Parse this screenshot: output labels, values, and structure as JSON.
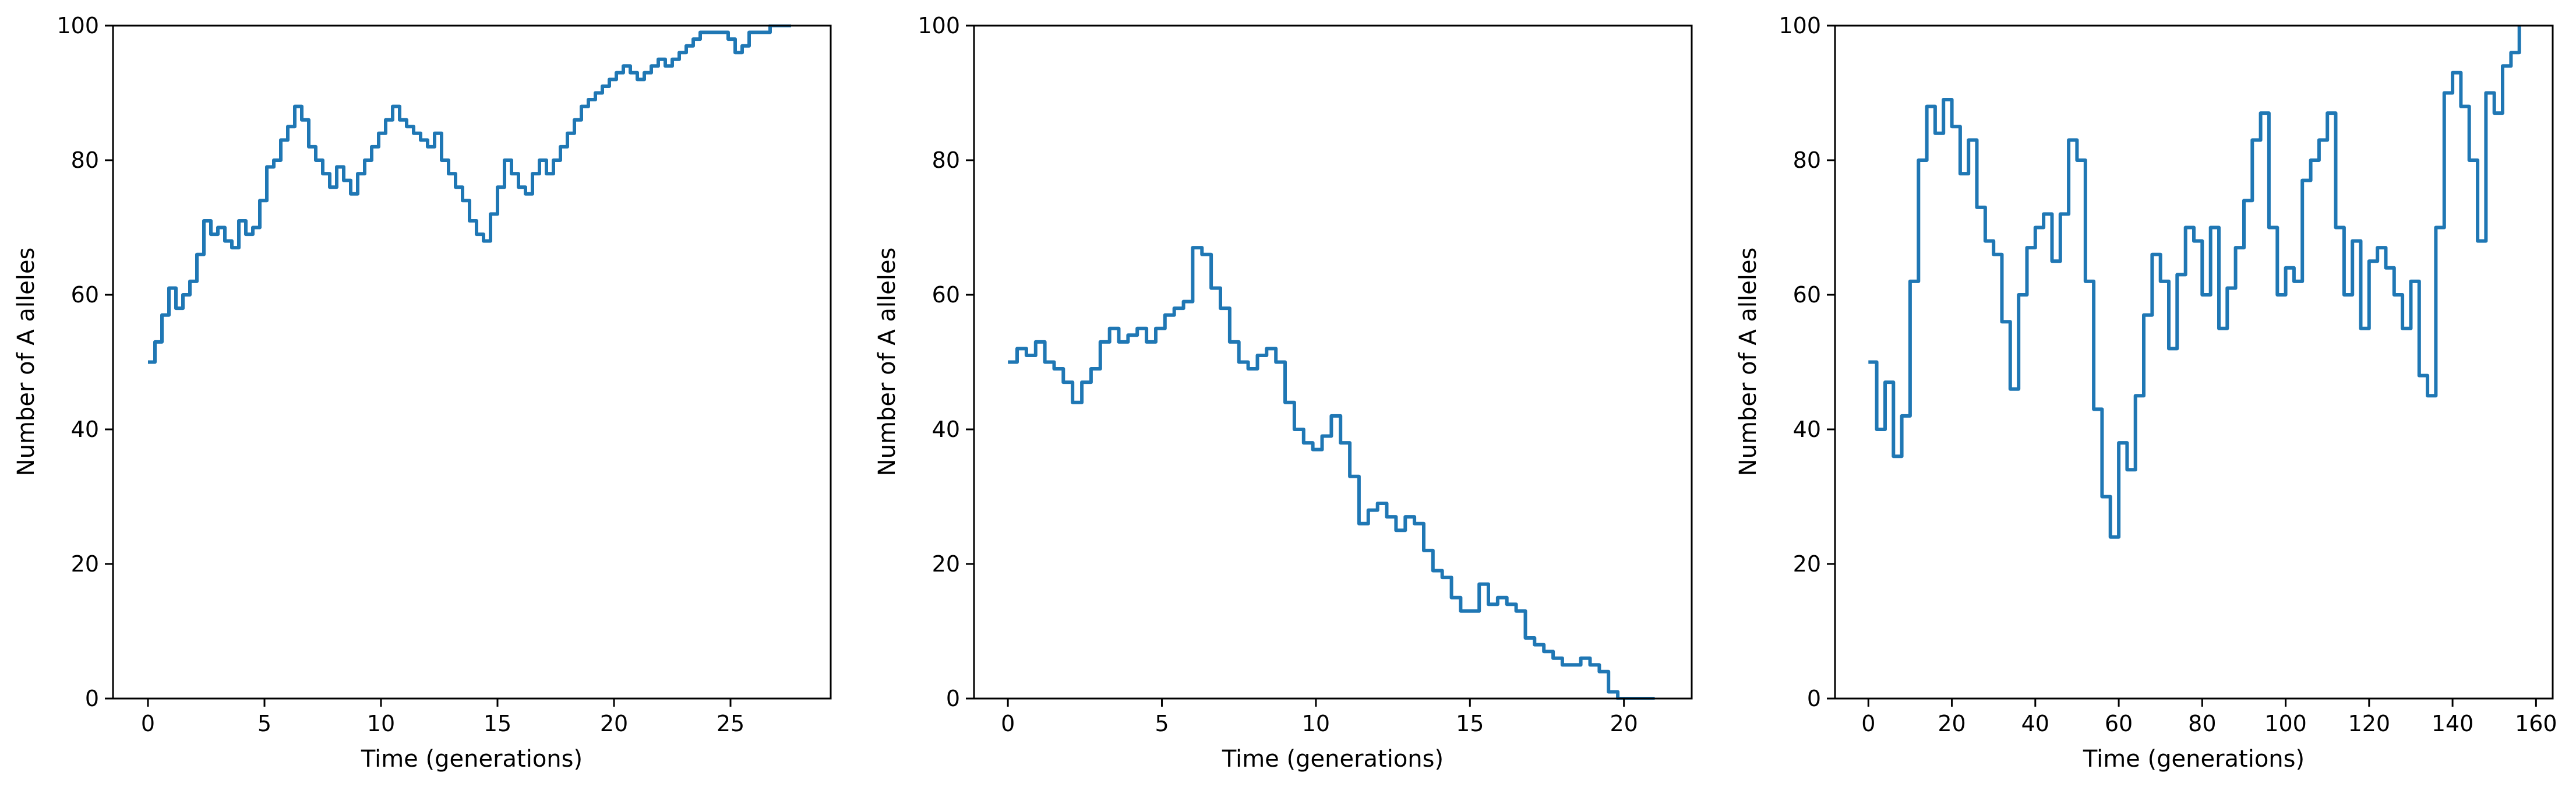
{
  "figure": {
    "background": "#ffffff",
    "line_color": "#1f77b4"
  },
  "chart_data": [
    {
      "type": "line",
      "title": "",
      "xlabel": "Time (generations)",
      "ylabel": "Number of A alleles",
      "xlim": [
        -1.5,
        29.3
      ],
      "ylim": [
        0,
        100
      ],
      "xticks": [
        0,
        5,
        10,
        15,
        20,
        25
      ],
      "yticks": [
        0,
        20,
        40,
        60,
        80,
        100
      ],
      "grid": false,
      "legend": "none",
      "series": [
        {
          "color": "#1f77b4",
          "x": [
            0,
            0.3,
            0.6,
            0.9,
            1.2,
            1.5,
            1.8,
            2.1,
            2.4,
            2.7,
            3.0,
            3.3,
            3.6,
            3.9,
            4.2,
            4.5,
            4.8,
            5.1,
            5.4,
            5.7,
            6.0,
            6.3,
            6.6,
            6.9,
            7.2,
            7.5,
            7.8,
            8.1,
            8.4,
            8.7,
            9.0,
            9.3,
            9.6,
            9.9,
            10.2,
            10.5,
            10.8,
            11.1,
            11.4,
            11.7,
            12.0,
            12.3,
            12.6,
            12.9,
            13.2,
            13.5,
            13.8,
            14.1,
            14.4,
            14.7,
            15.0,
            15.3,
            15.6,
            15.9,
            16.2,
            16.5,
            16.8,
            17.1,
            17.4,
            17.7,
            18.0,
            18.3,
            18.6,
            18.9,
            19.2,
            19.5,
            19.8,
            20.1,
            20.4,
            20.7,
            21.0,
            21.3,
            21.6,
            21.9,
            22.2,
            22.5,
            22.8,
            23.1,
            23.4,
            23.7,
            24.0,
            24.3,
            24.6,
            24.9,
            25.2,
            25.5,
            25.8,
            26.1,
            26.4,
            26.7,
            27.0,
            27.3,
            27.6
          ],
          "values": [
            50,
            53,
            57,
            61,
            58,
            60,
            62,
            66,
            71,
            69,
            70,
            68,
            67,
            71,
            69,
            70,
            74,
            79,
            80,
            83,
            85,
            88,
            86,
            82,
            80,
            78,
            76,
            79,
            77,
            75,
            78,
            80,
            82,
            84,
            86,
            88,
            86,
            85,
            84,
            83,
            82,
            84,
            80,
            78,
            76,
            74,
            71,
            69,
            68,
            72,
            76,
            80,
            78,
            76,
            75,
            78,
            80,
            78,
            80,
            82,
            84,
            86,
            88,
            89,
            90,
            91,
            92,
            93,
            94,
            93,
            92,
            93,
            94,
            95,
            94,
            95,
            96,
            97,
            98,
            99,
            99,
            99,
            99,
            98,
            96,
            97,
            99,
            99,
            99,
            100,
            100,
            100,
            100
          ]
        }
      ]
    },
    {
      "type": "line",
      "title": "",
      "xlabel": "Time (generations)",
      "ylabel": "Number of A alleles",
      "xlim": [
        -1.1,
        22.2
      ],
      "ylim": [
        0,
        100
      ],
      "xticks": [
        0,
        5,
        10,
        15,
        20
      ],
      "yticks": [
        0,
        20,
        40,
        60,
        80,
        100
      ],
      "grid": false,
      "legend": "none",
      "series": [
        {
          "color": "#1f77b4",
          "x": [
            0,
            0.3,
            0.6,
            0.9,
            1.2,
            1.5,
            1.8,
            2.1,
            2.4,
            2.7,
            3.0,
            3.3,
            3.6,
            3.9,
            4.2,
            4.5,
            4.8,
            5.1,
            5.4,
            5.7,
            6.0,
            6.3,
            6.6,
            6.9,
            7.2,
            7.5,
            7.8,
            8.1,
            8.4,
            8.7,
            9.0,
            9.3,
            9.6,
            9.9,
            10.2,
            10.5,
            10.8,
            11.1,
            11.4,
            11.7,
            12.0,
            12.3,
            12.6,
            12.9,
            13.2,
            13.5,
            13.8,
            14.1,
            14.4,
            14.7,
            15.0,
            15.3,
            15.6,
            15.9,
            16.2,
            16.5,
            16.8,
            17.1,
            17.4,
            17.7,
            18.0,
            18.3,
            18.6,
            18.9,
            19.2,
            19.5,
            19.8,
            20.1,
            20.4,
            20.7,
            21.0
          ],
          "values": [
            50,
            52,
            51,
            53,
            50,
            49,
            47,
            44,
            47,
            49,
            53,
            55,
            53,
            54,
            55,
            53,
            55,
            57,
            58,
            59,
            67,
            66,
            61,
            58,
            53,
            50,
            49,
            51,
            52,
            50,
            44,
            40,
            38,
            37,
            39,
            42,
            38,
            33,
            26,
            28,
            29,
            27,
            25,
            27,
            26,
            22,
            19,
            18,
            15,
            13,
            13,
            17,
            14,
            15,
            14,
            13,
            9,
            8,
            7,
            6,
            5,
            5,
            6,
            5,
            4,
            1,
            0,
            0,
            0,
            0,
            0
          ]
        }
      ]
    },
    {
      "type": "line",
      "title": "",
      "xlabel": "Time (generations)",
      "ylabel": "Number of A alleles",
      "xlim": [
        -8,
        164
      ],
      "ylim": [
        0,
        100
      ],
      "xticks": [
        0,
        20,
        40,
        60,
        80,
        100,
        120,
        140,
        160
      ],
      "yticks": [
        0,
        20,
        40,
        60,
        80,
        100
      ],
      "grid": false,
      "legend": "none",
      "series": [
        {
          "color": "#1f77b4",
          "x": [
            0,
            2,
            4,
            6,
            8,
            10,
            12,
            14,
            16,
            18,
            20,
            22,
            24,
            26,
            28,
            30,
            32,
            34,
            36,
            38,
            40,
            42,
            44,
            46,
            48,
            50,
            52,
            54,
            56,
            58,
            60,
            62,
            64,
            66,
            68,
            70,
            72,
            74,
            76,
            78,
            80,
            82,
            84,
            86,
            88,
            90,
            92,
            94,
            96,
            98,
            100,
            102,
            104,
            106,
            108,
            110,
            112,
            114,
            116,
            118,
            120,
            122,
            124,
            126,
            128,
            130,
            132,
            134,
            136,
            138,
            140,
            142,
            144,
            146,
            148,
            150,
            152,
            154,
            156
          ],
          "values": [
            50,
            40,
            47,
            36,
            42,
            62,
            80,
            88,
            84,
            89,
            85,
            78,
            83,
            73,
            68,
            66,
            56,
            46,
            60,
            67,
            70,
            72,
            65,
            72,
            83,
            80,
            62,
            43,
            30,
            24,
            38,
            34,
            45,
            57,
            66,
            62,
            52,
            63,
            70,
            68,
            60,
            70,
            55,
            61,
            67,
            74,
            83,
            87,
            70,
            60,
            64,
            62,
            77,
            80,
            83,
            87,
            70,
            60,
            68,
            55,
            65,
            67,
            64,
            60,
            55,
            62,
            48,
            45,
            70,
            90,
            93,
            88,
            80,
            68,
            90,
            87,
            94,
            96,
            100
          ]
        }
      ]
    }
  ]
}
